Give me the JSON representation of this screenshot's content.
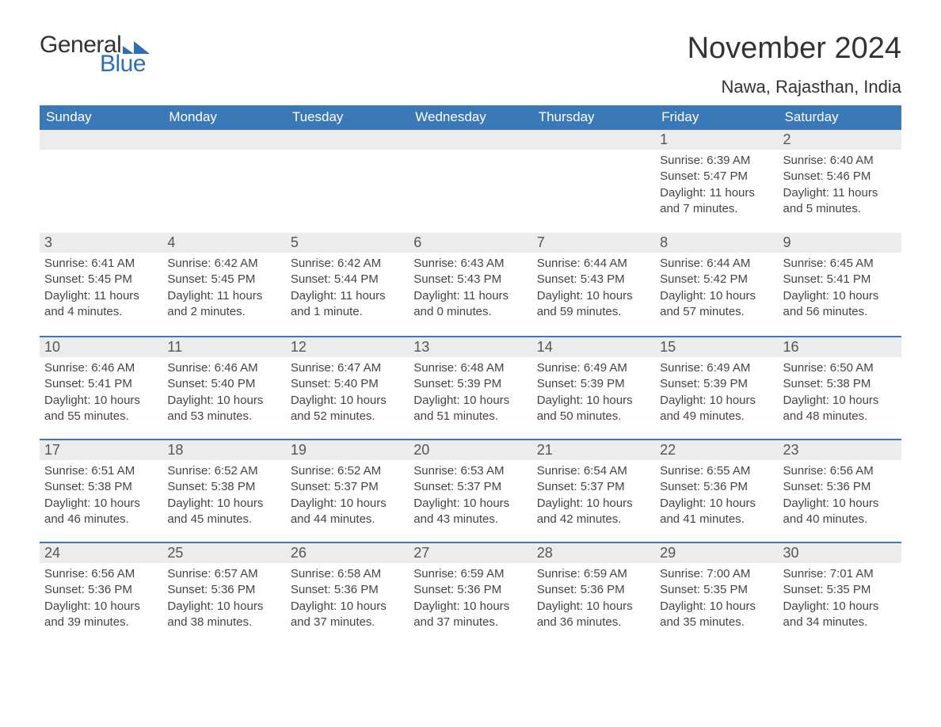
{
  "logo": {
    "text1": "General",
    "text2": "Blue",
    "tri_color": "#2f6eb5"
  },
  "title": "November 2024",
  "location": "Nawa, Rajasthan, India",
  "colors": {
    "header_bg": "#3b78b8",
    "header_text": "#ffffff",
    "daynum_bg": "#ececec",
    "daynum_border": "#3b78b8",
    "body_bg": "#ffffff",
    "text": "#333333"
  },
  "fonts": {
    "title_size": 38,
    "location_size": 22,
    "dow_size": 17,
    "daynum_size": 18,
    "body_size": 15
  },
  "days_of_week": [
    "Sunday",
    "Monday",
    "Tuesday",
    "Wednesday",
    "Thursday",
    "Friday",
    "Saturday"
  ],
  "weeks": [
    [
      null,
      null,
      null,
      null,
      null,
      {
        "n": "1",
        "sunrise": "Sunrise: 6:39 AM",
        "sunset": "Sunset: 5:47 PM",
        "daylight": "Daylight: 11 hours and 7 minutes."
      },
      {
        "n": "2",
        "sunrise": "Sunrise: 6:40 AM",
        "sunset": "Sunset: 5:46 PM",
        "daylight": "Daylight: 11 hours and 5 minutes."
      }
    ],
    [
      {
        "n": "3",
        "sunrise": "Sunrise: 6:41 AM",
        "sunset": "Sunset: 5:45 PM",
        "daylight": "Daylight: 11 hours and 4 minutes."
      },
      {
        "n": "4",
        "sunrise": "Sunrise: 6:42 AM",
        "sunset": "Sunset: 5:45 PM",
        "daylight": "Daylight: 11 hours and 2 minutes."
      },
      {
        "n": "5",
        "sunrise": "Sunrise: 6:42 AM",
        "sunset": "Sunset: 5:44 PM",
        "daylight": "Daylight: 11 hours and 1 minute."
      },
      {
        "n": "6",
        "sunrise": "Sunrise: 6:43 AM",
        "sunset": "Sunset: 5:43 PM",
        "daylight": "Daylight: 11 hours and 0 minutes."
      },
      {
        "n": "7",
        "sunrise": "Sunrise: 6:44 AM",
        "sunset": "Sunset: 5:43 PM",
        "daylight": "Daylight: 10 hours and 59 minutes."
      },
      {
        "n": "8",
        "sunrise": "Sunrise: 6:44 AM",
        "sunset": "Sunset: 5:42 PM",
        "daylight": "Daylight: 10 hours and 57 minutes."
      },
      {
        "n": "9",
        "sunrise": "Sunrise: 6:45 AM",
        "sunset": "Sunset: 5:41 PM",
        "daylight": "Daylight: 10 hours and 56 minutes."
      }
    ],
    [
      {
        "n": "10",
        "sunrise": "Sunrise: 6:46 AM",
        "sunset": "Sunset: 5:41 PM",
        "daylight": "Daylight: 10 hours and 55 minutes."
      },
      {
        "n": "11",
        "sunrise": "Sunrise: 6:46 AM",
        "sunset": "Sunset: 5:40 PM",
        "daylight": "Daylight: 10 hours and 53 minutes."
      },
      {
        "n": "12",
        "sunrise": "Sunrise: 6:47 AM",
        "sunset": "Sunset: 5:40 PM",
        "daylight": "Daylight: 10 hours and 52 minutes."
      },
      {
        "n": "13",
        "sunrise": "Sunrise: 6:48 AM",
        "sunset": "Sunset: 5:39 PM",
        "daylight": "Daylight: 10 hours and 51 minutes."
      },
      {
        "n": "14",
        "sunrise": "Sunrise: 6:49 AM",
        "sunset": "Sunset: 5:39 PM",
        "daylight": "Daylight: 10 hours and 50 minutes."
      },
      {
        "n": "15",
        "sunrise": "Sunrise: 6:49 AM",
        "sunset": "Sunset: 5:39 PM",
        "daylight": "Daylight: 10 hours and 49 minutes."
      },
      {
        "n": "16",
        "sunrise": "Sunrise: 6:50 AM",
        "sunset": "Sunset: 5:38 PM",
        "daylight": "Daylight: 10 hours and 48 minutes."
      }
    ],
    [
      {
        "n": "17",
        "sunrise": "Sunrise: 6:51 AM",
        "sunset": "Sunset: 5:38 PM",
        "daylight": "Daylight: 10 hours and 46 minutes."
      },
      {
        "n": "18",
        "sunrise": "Sunrise: 6:52 AM",
        "sunset": "Sunset: 5:38 PM",
        "daylight": "Daylight: 10 hours and 45 minutes."
      },
      {
        "n": "19",
        "sunrise": "Sunrise: 6:52 AM",
        "sunset": "Sunset: 5:37 PM",
        "daylight": "Daylight: 10 hours and 44 minutes."
      },
      {
        "n": "20",
        "sunrise": "Sunrise: 6:53 AM",
        "sunset": "Sunset: 5:37 PM",
        "daylight": "Daylight: 10 hours and 43 minutes."
      },
      {
        "n": "21",
        "sunrise": "Sunrise: 6:54 AM",
        "sunset": "Sunset: 5:37 PM",
        "daylight": "Daylight: 10 hours and 42 minutes."
      },
      {
        "n": "22",
        "sunrise": "Sunrise: 6:55 AM",
        "sunset": "Sunset: 5:36 PM",
        "daylight": "Daylight: 10 hours and 41 minutes."
      },
      {
        "n": "23",
        "sunrise": "Sunrise: 6:56 AM",
        "sunset": "Sunset: 5:36 PM",
        "daylight": "Daylight: 10 hours and 40 minutes."
      }
    ],
    [
      {
        "n": "24",
        "sunrise": "Sunrise: 6:56 AM",
        "sunset": "Sunset: 5:36 PM",
        "daylight": "Daylight: 10 hours and 39 minutes."
      },
      {
        "n": "25",
        "sunrise": "Sunrise: 6:57 AM",
        "sunset": "Sunset: 5:36 PM",
        "daylight": "Daylight: 10 hours and 38 minutes."
      },
      {
        "n": "26",
        "sunrise": "Sunrise: 6:58 AM",
        "sunset": "Sunset: 5:36 PM",
        "daylight": "Daylight: 10 hours and 37 minutes."
      },
      {
        "n": "27",
        "sunrise": "Sunrise: 6:59 AM",
        "sunset": "Sunset: 5:36 PM",
        "daylight": "Daylight: 10 hours and 37 minutes."
      },
      {
        "n": "28",
        "sunrise": "Sunrise: 6:59 AM",
        "sunset": "Sunset: 5:36 PM",
        "daylight": "Daylight: 10 hours and 36 minutes."
      },
      {
        "n": "29",
        "sunrise": "Sunrise: 7:00 AM",
        "sunset": "Sunset: 5:35 PM",
        "daylight": "Daylight: 10 hours and 35 minutes."
      },
      {
        "n": "30",
        "sunrise": "Sunrise: 7:01 AM",
        "sunset": "Sunset: 5:35 PM",
        "daylight": "Daylight: 10 hours and 34 minutes."
      }
    ]
  ]
}
